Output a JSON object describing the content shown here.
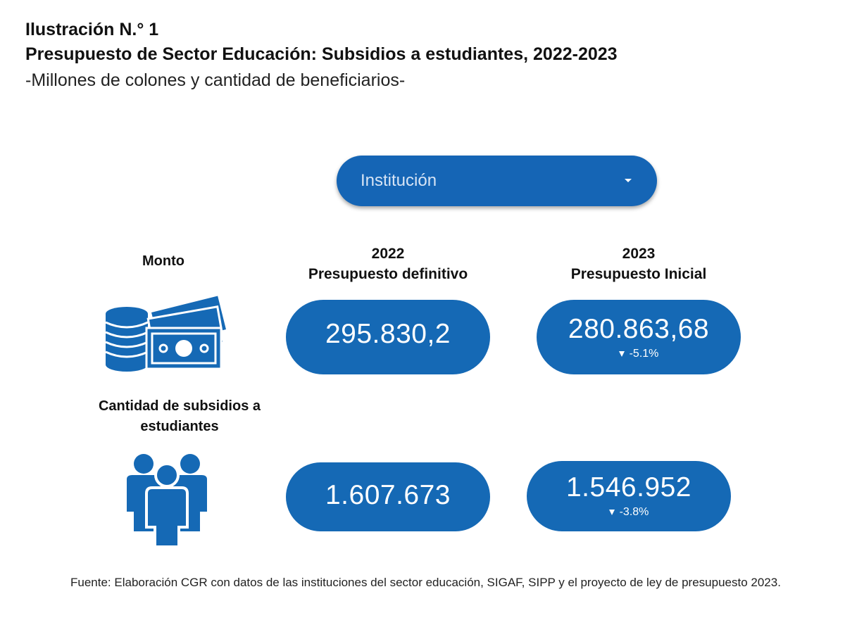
{
  "header": {
    "figure_label": "Ilustración N.° 1",
    "title": "Presupuesto de Sector Educación: Subsidios a estudiantes, 2022-2023",
    "subtitle": "-Millones de colones y cantidad de beneficiarios-"
  },
  "filter": {
    "label": "Institución",
    "icon": "caret-down-icon"
  },
  "columns": {
    "col_2022": {
      "year": "2022",
      "label": "Presupuesto definitivo"
    },
    "col_2023": {
      "year": "2023",
      "label": "Presupuesto Inicial"
    }
  },
  "rows": {
    "monto": {
      "label": "Monto",
      "icon": "money-icon",
      "value_2022": "295.830,2",
      "value_2023": "280.863,68",
      "change_2023": "-5.1%"
    },
    "subsidios": {
      "label_line1": "Cantidad de subsidios a",
      "label_line2": "estudiantes",
      "icon": "people-icon",
      "value_2022": "1.607.673",
      "value_2023": "1.546.952",
      "change_2023": "-3.8%"
    }
  },
  "colors": {
    "primary": "#1569b5",
    "text": "#111111"
  },
  "footer": {
    "source": "Fuente: Elaboración CGR con datos de las instituciones del sector educación, SIGAF, SIPP y el proyecto de ley de presupuesto 2023."
  }
}
